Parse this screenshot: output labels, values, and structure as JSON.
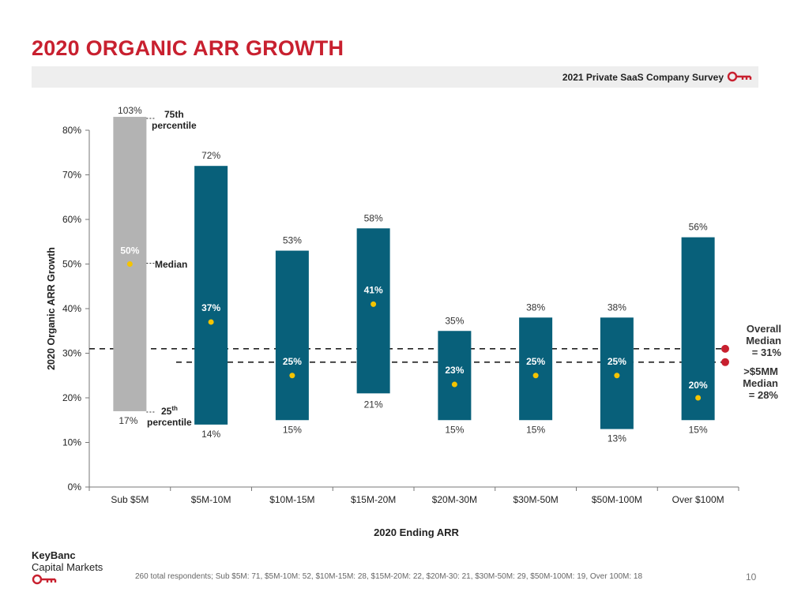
{
  "page": {
    "title": "2020 ORGANIC ARR GROWTH",
    "survey_label": "2021 Private SaaS Company Survey",
    "brand_line1": "KeyBanc",
    "brand_line2": "Capital Markets",
    "footnote": "260 total respondents; Sub $5M: 71, $5M-10M: 52, $10M-15M: 28, $15M-20M: 22, $20M-30: 21, $30M-50M: 29, $50M-100M: 19, Over 100M: 18",
    "page_number": "10"
  },
  "colors": {
    "title_red": "#c8202f",
    "bar_teal": "#08607a",
    "bar_gray": "#b3b3b3",
    "median_dot": "#f5c400",
    "reference_dot": "#c8202f"
  },
  "chart_data": {
    "type": "bar",
    "subtype": "floating-range-with-median",
    "xlabel": "2020 Ending ARR",
    "ylabel": "2020 Organic ARR Growth",
    "ylim": [
      0,
      80
    ],
    "yticks": [
      "0%",
      "10%",
      "20%",
      "30%",
      "40%",
      "50%",
      "60%",
      "70%",
      "80%"
    ],
    "categories": [
      "Sub $5M",
      "$5M-10M",
      "$10M-15M",
      "$15M-20M",
      "$20M-30M",
      "$30M-50M",
      "$50M-100M",
      "Over $100M"
    ],
    "p75": [
      103,
      72,
      53,
      58,
      35,
      38,
      38,
      56
    ],
    "p75_labels": [
      "103%",
      "72%",
      "53%",
      "58%",
      "35%",
      "38%",
      "38%",
      "56%"
    ],
    "p25": [
      17,
      14,
      15,
      21,
      15,
      15,
      13,
      15
    ],
    "p25_labels": [
      "17%",
      "14%",
      "15%",
      "21%",
      "15%",
      "15%",
      "13%",
      "15%"
    ],
    "median": [
      50,
      37,
      25,
      41,
      23,
      25,
      25,
      20
    ],
    "median_labels": [
      "50%",
      "37%",
      "25%",
      "41%",
      "23%",
      "25%",
      "25%",
      "20%"
    ],
    "reference_lines": [
      {
        "value": 31,
        "label_line1": "Overall",
        "label_line2": "Median",
        "label_line3": "= 31%"
      },
      {
        "value": 28,
        "label_line1": ">$5MM",
        "label_line2": "Median",
        "label_line3": "= 28%"
      }
    ],
    "annotations": {
      "p75_line1": "75th",
      "p75_line2": "percentile",
      "median": "Median",
      "p25_num": "25",
      "p25_sup": "th",
      "p25_line2": "percentile"
    },
    "grid": false,
    "legend": "none"
  }
}
